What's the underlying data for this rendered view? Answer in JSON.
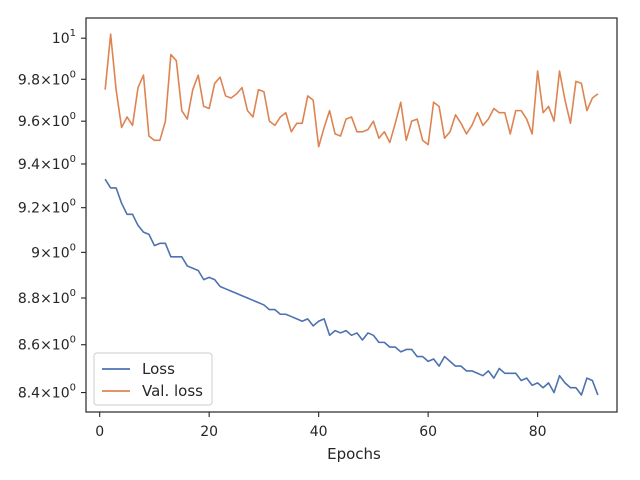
{
  "chart_data": {
    "type": "line",
    "title": "",
    "xlabel": "Epochs",
    "ylabel": "",
    "y_scale": "log",
    "xlim": [
      -2.5,
      94.5
    ],
    "ylim": [
      8.32,
      10.1
    ],
    "grid": false,
    "legend": {
      "placement": "lower-left"
    },
    "x_ticks": [
      {
        "value": 0,
        "label": "0"
      },
      {
        "value": 20,
        "label": "20"
      },
      {
        "value": 40,
        "label": "40"
      },
      {
        "value": 60,
        "label": "60"
      },
      {
        "value": 80,
        "label": "80"
      }
    ],
    "y_ticks": [
      {
        "value": 8.4,
        "mantissa": "8.4",
        "base": "10",
        "exp": "0"
      },
      {
        "value": 8.6,
        "mantissa": "8.6",
        "base": "10",
        "exp": "0"
      },
      {
        "value": 8.8,
        "mantissa": "8.8",
        "base": "10",
        "exp": "0"
      },
      {
        "value": 9.0,
        "mantissa": "9",
        "base": "10",
        "exp": "0"
      },
      {
        "value": 9.2,
        "mantissa": "9.2",
        "base": "10",
        "exp": "0"
      },
      {
        "value": 9.4,
        "mantissa": "9.4",
        "base": "10",
        "exp": "0"
      },
      {
        "value": 9.6,
        "mantissa": "9.6",
        "base": "10",
        "exp": "0"
      },
      {
        "value": 9.8,
        "mantissa": "9.8",
        "base": "10",
        "exp": "0"
      },
      {
        "value": 10.0,
        "mantissa": "",
        "base": "10",
        "exp": "1"
      }
    ],
    "x_start": 1,
    "series": [
      {
        "name": "Loss",
        "color": "#4c72b0",
        "values": [
          9.33,
          9.29,
          9.29,
          9.22,
          9.17,
          9.17,
          9.12,
          9.09,
          9.08,
          9.03,
          9.04,
          9.04,
          8.98,
          8.98,
          8.98,
          8.94,
          8.93,
          8.92,
          8.88,
          8.89,
          8.88,
          8.85,
          8.84,
          8.83,
          8.82,
          8.81,
          8.8,
          8.79,
          8.78,
          8.77,
          8.75,
          8.75,
          8.73,
          8.73,
          8.72,
          8.71,
          8.7,
          8.71,
          8.68,
          8.7,
          8.71,
          8.64,
          8.66,
          8.65,
          8.66,
          8.64,
          8.65,
          8.62,
          8.65,
          8.64,
          8.61,
          8.61,
          8.59,
          8.59,
          8.57,
          8.58,
          8.58,
          8.55,
          8.55,
          8.53,
          8.54,
          8.51,
          8.55,
          8.53,
          8.51,
          8.51,
          8.49,
          8.49,
          8.48,
          8.47,
          8.49,
          8.46,
          8.5,
          8.48,
          8.48,
          8.48,
          8.45,
          8.46,
          8.43,
          8.44,
          8.42,
          8.44,
          8.4,
          8.47,
          8.44,
          8.42,
          8.42,
          8.39,
          8.46,
          8.45,
          8.39
        ]
      },
      {
        "name": "Val. loss",
        "color": "#dd8452",
        "values": [
          9.75,
          10.02,
          9.75,
          9.57,
          9.62,
          9.58,
          9.76,
          9.82,
          9.53,
          9.51,
          9.51,
          9.6,
          9.92,
          9.89,
          9.65,
          9.61,
          9.75,
          9.82,
          9.67,
          9.66,
          9.78,
          9.81,
          9.72,
          9.71,
          9.73,
          9.76,
          9.65,
          9.62,
          9.75,
          9.74,
          9.6,
          9.58,
          9.62,
          9.64,
          9.55,
          9.59,
          9.59,
          9.72,
          9.7,
          9.48,
          9.57,
          9.65,
          9.54,
          9.53,
          9.61,
          9.62,
          9.55,
          9.55,
          9.56,
          9.6,
          9.52,
          9.55,
          9.5,
          9.59,
          9.69,
          9.51,
          9.6,
          9.61,
          9.51,
          9.49,
          9.69,
          9.67,
          9.52,
          9.55,
          9.63,
          9.59,
          9.54,
          9.58,
          9.64,
          9.58,
          9.61,
          9.66,
          9.64,
          9.64,
          9.54,
          9.65,
          9.65,
          9.61,
          9.54,
          9.84,
          9.64,
          9.67,
          9.6,
          9.84,
          9.7,
          9.59,
          9.79,
          9.78,
          9.65,
          9.71,
          9.73
        ]
      }
    ]
  }
}
